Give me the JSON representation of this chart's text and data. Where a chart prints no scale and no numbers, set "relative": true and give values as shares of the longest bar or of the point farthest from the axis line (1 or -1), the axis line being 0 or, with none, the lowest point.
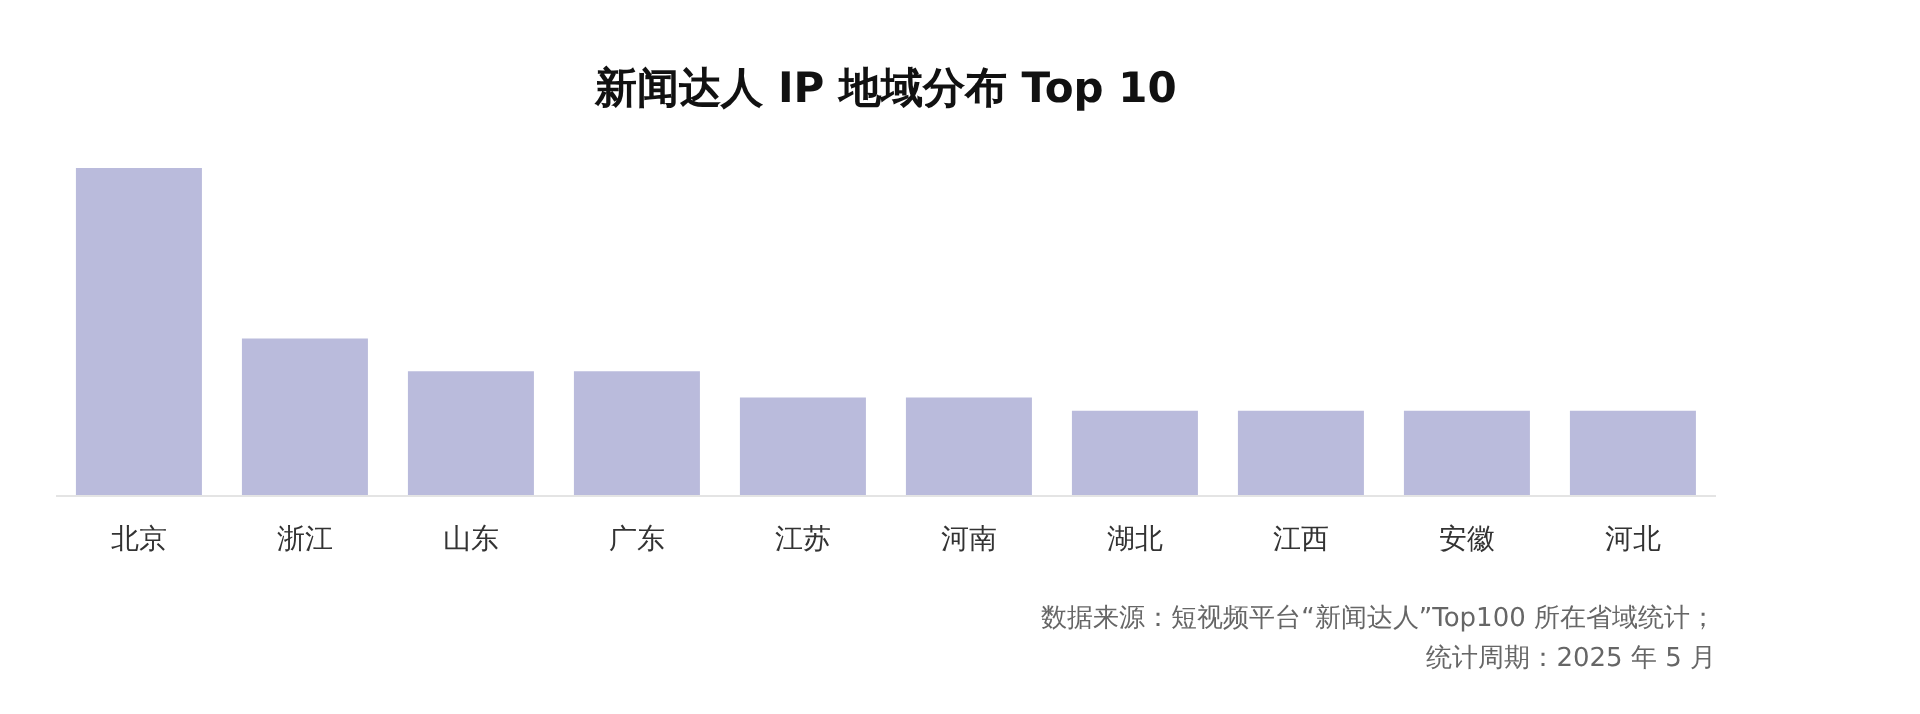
{
  "chart_data": {
    "type": "bar",
    "title": "新闻达人 IP 地域分布 Top 10",
    "relative": true,
    "categories": [
      "北京",
      "浙江",
      "山东",
      "广东",
      "江苏",
      "河南",
      "湖北",
      "江西",
      "安徽",
      "河北"
    ],
    "values": [
      1,
      0.48,
      0.38,
      0.38,
      0.3,
      0.3,
      0.26,
      0.26,
      0.26,
      0.26
    ],
    "color": "#babbdc",
    "grid": false,
    "annotations": [
      "数据来源：短视频平台“新闻达人”Top100 所在省域统计；",
      "统计周期：2025 年 5 月"
    ]
  }
}
